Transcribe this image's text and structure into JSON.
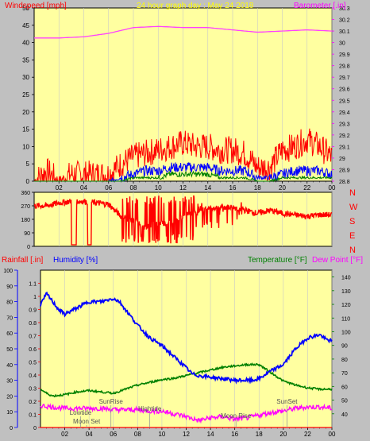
{
  "chart_data": [
    {
      "type": "line",
      "title": "24 hour graph day : May 24 2018",
      "ylabel_left": "Windspeed [mph]",
      "ylabel_right": "Barometer [.in]",
      "x_ticks": [
        "02",
        "04",
        "06",
        "08",
        "10",
        "12",
        "14",
        "16",
        "18",
        "20",
        "22",
        "00"
      ],
      "x_range": [
        0,
        24
      ],
      "y_left_range": [
        0,
        50
      ],
      "y_left_ticks": [
        0,
        5,
        10,
        15,
        20,
        25,
        30,
        35,
        40,
        45,
        50
      ],
      "y_right_range": [
        28.8,
        30.3
      ],
      "y_right_ticks": [
        "28.8",
        "28.9",
        "29",
        "29.1",
        "29.2",
        "29.3",
        "29.4",
        "29.5",
        "29.6",
        "29.7",
        "29.8",
        "29.9",
        "30",
        "30.1",
        "30.2",
        "30.3"
      ],
      "series": [
        {
          "name": "Barometer",
          "color": "#ff40ff",
          "axis": "right",
          "x": [
            0,
            2,
            4,
            6,
            8,
            10,
            12,
            14,
            16,
            18,
            20,
            22,
            24
          ],
          "y": [
            30.04,
            30.04,
            30.05,
            30.08,
            30.13,
            30.14,
            30.13,
            30.13,
            30.11,
            30.09,
            30.1,
            30.11,
            30.1
          ]
        },
        {
          "name": "Wind gust",
          "color": "#ff0000",
          "axis": "left",
          "x": [
            0,
            1,
            2,
            3,
            4,
            5,
            6,
            7,
            8,
            9,
            10,
            11,
            12,
            13,
            14,
            15,
            16,
            17,
            18,
            19,
            20,
            21,
            22,
            23,
            24
          ],
          "y": [
            0,
            3,
            0,
            2,
            2,
            2,
            2,
            5,
            7,
            8,
            9,
            10,
            11,
            10,
            10,
            9,
            9,
            8,
            4,
            4,
            9,
            10,
            12,
            10,
            7
          ]
        },
        {
          "name": "Wind average",
          "color": "#0000ff",
          "axis": "left",
          "x": [
            0,
            1,
            2,
            3,
            4,
            5,
            6,
            7,
            8,
            9,
            10,
            11,
            12,
            13,
            14,
            15,
            16,
            17,
            18,
            19,
            20,
            21,
            22,
            23,
            24
          ],
          "y": [
            0,
            0,
            0,
            0,
            0,
            0,
            0,
            1,
            2,
            3,
            3,
            4,
            4,
            4,
            4,
            3,
            3,
            3,
            1,
            1,
            2,
            3,
            3,
            3,
            2
          ]
        },
        {
          "name": "Wind low",
          "color": "#008000",
          "axis": "left",
          "x": [
            0,
            1,
            2,
            3,
            4,
            5,
            6,
            7,
            8,
            9,
            10,
            11,
            12,
            13,
            14,
            15,
            16,
            17,
            18,
            19,
            20,
            21,
            22,
            23,
            24
          ],
          "y": [
            0,
            0,
            0,
            0,
            0,
            0,
            0,
            0,
            1,
            1,
            1,
            2,
            2,
            2,
            2,
            1,
            1,
            1,
            0,
            0,
            1,
            1,
            1,
            1,
            1
          ]
        }
      ]
    },
    {
      "type": "scatter",
      "ylabel_right": [
        "N",
        "W",
        "S",
        "E",
        "N"
      ],
      "y_range": [
        0,
        360
      ],
      "y_ticks": [
        0,
        90,
        180,
        270,
        360
      ],
      "x_range": [
        0,
        24
      ],
      "series": [
        {
          "name": "Wind direction",
          "color": "#ff0000",
          "x": [
            0,
            1,
            2,
            3,
            4,
            5,
            6,
            7,
            8,
            9,
            10,
            11,
            12,
            13,
            14,
            15,
            16,
            17,
            18,
            19,
            20,
            21,
            22,
            23,
            24
          ],
          "y": [
            270,
            270,
            290,
            300,
            300,
            290,
            280,
            200,
            170,
            120,
            160,
            150,
            200,
            230,
            250,
            260,
            260,
            240,
            220,
            240,
            220,
            210,
            200,
            210,
            210
          ]
        }
      ]
    },
    {
      "type": "line",
      "ylabel_left_1": "Rainfall [.in]",
      "ylabel_left_2": "Humidity [%]",
      "ylabel_right_1": "Temperature [°F]",
      "ylabel_right_2": "Dew Point [°F]",
      "x_ticks": [
        "02",
        "04",
        "06",
        "08",
        "10",
        "12",
        "14",
        "16",
        "18",
        "20",
        "22",
        "00"
      ],
      "x_range": [
        0,
        24
      ],
      "rain_ticks": [
        "0",
        "0.1",
        "0.2",
        "0.3",
        "0.4",
        "0.5",
        "0.6",
        "0.7",
        "0.8",
        "0.9",
        "1",
        "1.1"
      ],
      "rain_range": [
        0,
        1.2
      ],
      "humidity_ticks": [
        0,
        10,
        20,
        30,
        40,
        50,
        60,
        70,
        80,
        90,
        100
      ],
      "humidity_range": [
        0,
        100
      ],
      "temp_ticks": [
        40,
        50,
        60,
        70,
        80,
        90,
        100,
        110,
        120,
        130,
        140
      ],
      "temp_range": [
        30,
        145
      ],
      "annotations": [
        {
          "label": "Lowtide",
          "x": 3.3
        },
        {
          "label": "Moon Set",
          "x": 3.8
        },
        {
          "label": "SunRise",
          "x": 5.8
        },
        {
          "label": "Hightide",
          "x": 9.0
        },
        {
          "label": "Moon Rise",
          "x": 16.1
        },
        {
          "label": "SunSet",
          "x": 20.3
        }
      ],
      "series": [
        {
          "name": "Humidity",
          "color": "#0000ff",
          "axis": "humidity",
          "x": [
            0,
            0.5,
            1,
            1.5,
            2,
            3,
            4,
            5,
            6,
            6.5,
            7,
            8,
            9,
            10,
            11,
            12,
            12.5,
            13,
            14,
            15,
            16,
            17,
            17.5,
            18,
            19,
            20,
            21,
            22,
            23,
            23.5,
            24
          ],
          "y": [
            78,
            85,
            80,
            75,
            72,
            76,
            80,
            80,
            82,
            80,
            75,
            65,
            57,
            52,
            45,
            38,
            34,
            33,
            32,
            31,
            30,
            30,
            30,
            31,
            36,
            40,
            50,
            57,
            59,
            56,
            55
          ]
        },
        {
          "name": "Temperature",
          "color": "#008000",
          "axis": "temp",
          "x": [
            0,
            0.5,
            1,
            2,
            3,
            4,
            5,
            6,
            7,
            8,
            9,
            10,
            11,
            12,
            13,
            14,
            15,
            16,
            17,
            18,
            19,
            20,
            21,
            22,
            23,
            24
          ],
          "y": [
            58,
            55,
            53,
            54,
            56,
            57,
            56,
            55,
            58,
            61,
            63,
            65,
            66,
            68,
            70,
            72,
            74,
            75,
            76,
            76,
            70,
            64,
            61,
            59,
            58,
            58
          ]
        },
        {
          "name": "Dew Point",
          "color": "#ff00ff",
          "axis": "temp",
          "x": [
            0,
            1,
            2,
            3,
            4,
            5,
            6,
            7,
            8,
            9,
            10,
            11,
            12,
            13,
            14,
            15,
            16,
            17,
            18,
            19,
            20,
            21,
            22,
            23,
            24
          ],
          "y": [
            46,
            45,
            44,
            44,
            44,
            44,
            43,
            43,
            43,
            42,
            42,
            40,
            38,
            35,
            37,
            38,
            36,
            37,
            39,
            41,
            42,
            44,
            45,
            45,
            44
          ]
        },
        {
          "name": "Rainfall",
          "color": "#ff0000",
          "axis": "rain",
          "x": [
            0,
            24
          ],
          "y": [
            0,
            0
          ]
        }
      ]
    }
  ]
}
